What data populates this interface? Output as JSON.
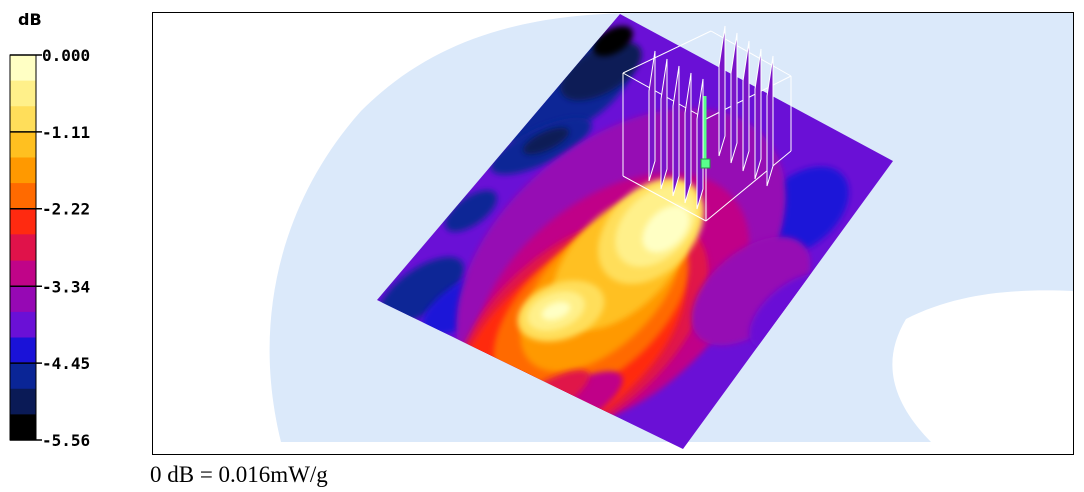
{
  "chart_data": {
    "type": "heatmap",
    "colorbar": {
      "unit": "dB",
      "tick_labels": [
        "0.000",
        "-1.11",
        "-2.22",
        "-3.34",
        "-4.45",
        "-5.56"
      ],
      "tick_values": [
        0.0,
        -1.11,
        -2.22,
        -3.34,
        -4.45,
        -5.56
      ],
      "range": [
        -5.56,
        0.0
      ],
      "bands": [
        {
          "from": 0.0,
          "to": -0.37,
          "color": "#ffffc4"
        },
        {
          "from": -0.37,
          "to": -0.74,
          "color": "#fff08a"
        },
        {
          "from": -0.74,
          "to": -1.11,
          "color": "#ffde5a"
        },
        {
          "from": -1.11,
          "to": -1.48,
          "color": "#ffc020"
        },
        {
          "from": -1.48,
          "to": -1.85,
          "color": "#ff9900"
        },
        {
          "from": -1.85,
          "to": -2.22,
          "color": "#ff6a00"
        },
        {
          "from": -2.22,
          "to": -2.59,
          "color": "#ff2a10"
        },
        {
          "from": -2.59,
          "to": -2.97,
          "color": "#e0124a"
        },
        {
          "from": -2.97,
          "to": -3.34,
          "color": "#c00488"
        },
        {
          "from": -3.34,
          "to": -3.71,
          "color": "#9608b4"
        },
        {
          "from": -3.71,
          "to": -4.08,
          "color": "#6a10d6"
        },
        {
          "from": -4.08,
          "to": -4.45,
          "color": "#1a12d8"
        },
        {
          "from": -4.45,
          "to": -4.82,
          "color": "#0a2596"
        },
        {
          "from": -4.82,
          "to": -5.19,
          "color": "#0a1a56"
        },
        {
          "from": -5.19,
          "to": -5.56,
          "color": "#000000"
        }
      ]
    },
    "plot_background_color": "#dbe9fa",
    "field_description_levels": {
      "hotspot_peak": 0.0,
      "outer_region_min": -5.56
    },
    "caption": "0 dB = 0.016mW/g"
  }
}
